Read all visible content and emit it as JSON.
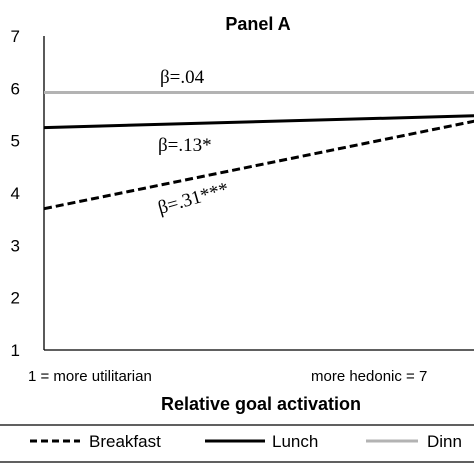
{
  "chart_data": {
    "type": "line",
    "title": "Panel A",
    "xlabel": "Relative goal activation",
    "ylabel": "",
    "ylim": [
      1,
      7
    ],
    "yticks": [
      "1",
      "2",
      "3",
      "4",
      "5",
      "6",
      "7"
    ],
    "x_tick_left": "1 = more utilitarian",
    "x_tick_right": "more hedonic = 7",
    "x": [
      1,
      7
    ],
    "grid": false,
    "legend_position": "bottom",
    "series": [
      {
        "name": "Breakfast",
        "values": [
          3.7,
          5.55
        ],
        "style": "dashed",
        "color": "#000000",
        "annotation": "β=.31***"
      },
      {
        "name": "Lunch",
        "values": [
          5.25,
          5.5
        ],
        "style": "solid",
        "color": "#000000",
        "annotation": "β=.13*"
      },
      {
        "name": "Dinn",
        "values": [
          5.92,
          5.92
        ],
        "style": "solid",
        "color": "#b3b3b3",
        "annotation": "β=.04"
      }
    ]
  }
}
